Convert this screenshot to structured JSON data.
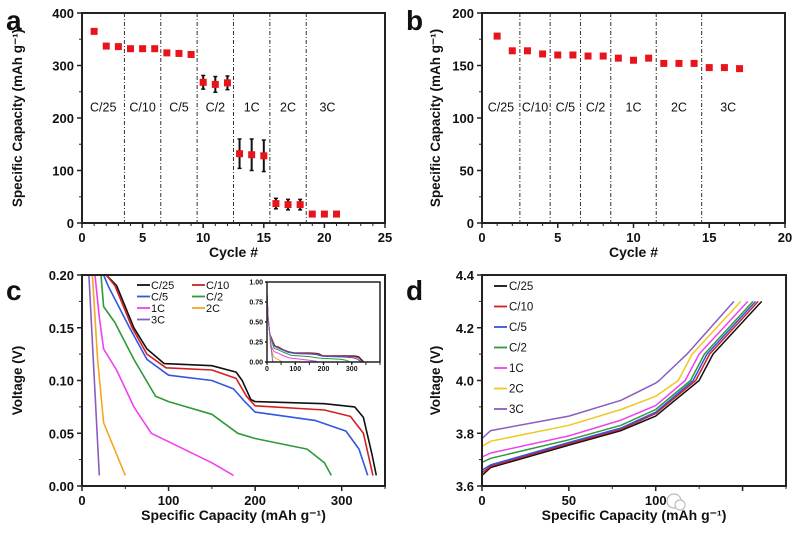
{
  "chart_data": [
    {
      "panel": "a",
      "type": "scatter",
      "xlabel": "Cycle #",
      "ylabel": "Specific Capacity (mAh g⁻¹)",
      "xlim": [
        0,
        25
      ],
      "ylim": [
        0,
        400
      ],
      "xticks": [
        0,
        5,
        10,
        15,
        20,
        25
      ],
      "yticks": [
        0,
        100,
        200,
        300,
        400
      ],
      "marker_color": "#e8141b",
      "x": [
        1,
        2,
        3,
        4,
        5,
        6,
        7,
        8,
        9,
        10,
        11,
        12,
        13,
        14,
        15,
        16,
        17,
        18,
        19,
        20,
        21
      ],
      "y": [
        365,
        337,
        336,
        332,
        332,
        332,
        324,
        323,
        321,
        268,
        264,
        267,
        132,
        130,
        128,
        37,
        35,
        35,
        17,
        17,
        17
      ],
      "yerr": [
        0,
        0,
        0,
        0,
        0,
        0,
        0,
        0,
        0,
        13,
        15,
        13,
        28,
        30,
        30,
        10,
        10,
        10,
        0,
        0,
        0
      ],
      "rate_boundaries": [
        3.5,
        6.5,
        9.5,
        12.5,
        15.5,
        18.5
      ],
      "rate_labels": [
        "C/25",
        "C/10",
        "C/5",
        "C/2",
        "1C",
        "2C",
        "3C"
      ],
      "rate_label_y": 212
    },
    {
      "panel": "b",
      "type": "scatter",
      "xlabel": "Cycle #",
      "ylabel": "Specific Capacity (mAh g⁻¹)",
      "xlim": [
        0,
        20
      ],
      "ylim": [
        0,
        200
      ],
      "xticks": [
        0,
        5,
        10,
        15,
        20
      ],
      "yticks": [
        0,
        50,
        100,
        150,
        200
      ],
      "marker_color": "#e8141b",
      "x": [
        1,
        2,
        3,
        4,
        5,
        6,
        7,
        8,
        9,
        10,
        11,
        12,
        13,
        14,
        15,
        16,
        17
      ],
      "y": [
        178,
        164,
        164,
        161,
        160,
        160,
        159,
        159,
        157,
        155,
        157,
        152,
        152,
        152,
        148,
        148,
        147
      ],
      "rate_boundaries": [
        2.5,
        4.5,
        6.5,
        8.5,
        11.5,
        14.5
      ],
      "rate_labels": [
        "C/25",
        "C/10",
        "C/5",
        "C/2",
        "1C",
        "2C",
        "3C"
      ],
      "rate_label_y": 106
    },
    {
      "panel": "c",
      "type": "line",
      "xlabel": "Specific Capacity  (mAh g⁻¹)",
      "ylabel": "Voltage (V)",
      "xlim": [
        0,
        350
      ],
      "ylim": [
        0,
        0.2
      ],
      "xticks": [
        0,
        100,
        200,
        300
      ],
      "yticks": [
        0.0,
        0.05,
        0.1,
        0.15,
        0.2
      ],
      "ytick_labels": [
        "0.00",
        "0.05",
        "0.10",
        "0.15",
        "0.20"
      ],
      "legend": "top",
      "series": [
        {
          "name": "C/25",
          "color": "#111111",
          "points": [
            [
              28,
              0.2
            ],
            [
              40,
              0.19
            ],
            [
              60,
              0.15
            ],
            [
              75,
              0.13
            ],
            [
              95,
              0.116
            ],
            [
              150,
              0.114
            ],
            [
              178,
              0.108
            ],
            [
              185,
              0.1
            ],
            [
              195,
              0.082
            ],
            [
              200,
              0.08
            ],
            [
              280,
              0.078
            ],
            [
              315,
              0.075
            ],
            [
              325,
              0.065
            ],
            [
              335,
              0.03
            ],
            [
              340,
              0.01
            ]
          ]
        },
        {
          "name": "C/10",
          "color": "#d42020",
          "points": [
            [
              28,
              0.2
            ],
            [
              38,
              0.19
            ],
            [
              58,
              0.15
            ],
            [
              75,
              0.125
            ],
            [
              97,
              0.112
            ],
            [
              150,
              0.11
            ],
            [
              178,
              0.102
            ],
            [
              190,
              0.085
            ],
            [
              200,
              0.076
            ],
            [
              280,
              0.072
            ],
            [
              310,
              0.066
            ],
            [
              325,
              0.05
            ],
            [
              336,
              0.01
            ]
          ]
        },
        {
          "name": "C/5",
          "color": "#3355e0",
          "points": [
            [
              25,
              0.2
            ],
            [
              30,
              0.19
            ],
            [
              55,
              0.15
            ],
            [
              75,
              0.12
            ],
            [
              100,
              0.105
            ],
            [
              150,
              0.1
            ],
            [
              175,
              0.092
            ],
            [
              188,
              0.08
            ],
            [
              200,
              0.07
            ],
            [
              270,
              0.062
            ],
            [
              305,
              0.052
            ],
            [
              320,
              0.035
            ],
            [
              330,
              0.01
            ]
          ]
        },
        {
          "name": "C/2",
          "color": "#2e9a3a",
          "points": [
            [
              22,
              0.2
            ],
            [
              25,
              0.17
            ],
            [
              38,
              0.155
            ],
            [
              60,
              0.12
            ],
            [
              85,
              0.085
            ],
            [
              100,
              0.08
            ],
            [
              150,
              0.068
            ],
            [
              180,
              0.05
            ],
            [
              200,
              0.045
            ],
            [
              260,
              0.035
            ],
            [
              280,
              0.022
            ],
            [
              288,
              0.01
            ]
          ]
        },
        {
          "name": "1C",
          "color": "#f040f0",
          "points": [
            [
              15,
              0.2
            ],
            [
              20,
              0.16
            ],
            [
              25,
              0.13
            ],
            [
              40,
              0.11
            ],
            [
              60,
              0.075
            ],
            [
              80,
              0.05
            ],
            [
              100,
              0.042
            ],
            [
              150,
              0.022
            ],
            [
              175,
              0.01
            ]
          ]
        },
        {
          "name": "2C",
          "color": "#f5a623",
          "points": [
            [
              12,
              0.2
            ],
            [
              18,
              0.12
            ],
            [
              25,
              0.06
            ],
            [
              50,
              0.01
            ]
          ]
        },
        {
          "name": "3C",
          "color": "#8a5cc0",
          "points": [
            [
              8,
              0.2
            ],
            [
              20,
              0.01
            ]
          ]
        }
      ],
      "inset": {
        "xlim": [
          0,
          400
        ],
        "ylim": [
          0,
          1
        ],
        "xticks": [
          0,
          100,
          200,
          300
        ],
        "yticks": [
          0,
          0.25,
          0.5,
          0.75,
          1.0
        ],
        "ytick_labels": [
          "0.00",
          "0.25",
          "0.50",
          "0.75",
          "1.00"
        ]
      }
    },
    {
      "panel": "d",
      "type": "line",
      "xlabel": "Specific Capacity (mAh g⁻¹)",
      "ylabel": "Voltage (V)",
      "xlim": [
        0,
        175
      ],
      "ylim": [
        3.6,
        4.4
      ],
      "xticks": [
        0,
        50,
        100,
        150
      ],
      "xtick_labels": [
        "0",
        "50",
        "100",
        ""
      ],
      "yticks": [
        3.6,
        3.8,
        4.0,
        4.2,
        4.4
      ],
      "ytick_labels": [
        "3.6",
        "3.8",
        "4.0",
        "4.2",
        "4.4"
      ],
      "legend": "top-left",
      "series": [
        {
          "name": "C/25",
          "color": "#111111",
          "points": [
            [
              0,
              3.64
            ],
            [
              5,
              3.67
            ],
            [
              50,
              3.755
            ],
            [
              80,
              3.81
            ],
            [
              100,
              3.865
            ],
            [
              125,
              4.0
            ],
            [
              133,
              4.1
            ],
            [
              161,
              4.3
            ]
          ]
        },
        {
          "name": "C/10",
          "color": "#d42020",
          "points": [
            [
              0,
              3.65
            ],
            [
              5,
              3.675
            ],
            [
              50,
              3.76
            ],
            [
              80,
              3.815
            ],
            [
              100,
              3.875
            ],
            [
              123,
              4.0
            ],
            [
              131,
              4.1
            ],
            [
              159,
              4.3
            ]
          ]
        },
        {
          "name": "C/5",
          "color": "#3355e0",
          "points": [
            [
              0,
              3.66
            ],
            [
              5,
              3.68
            ],
            [
              50,
              3.765
            ],
            [
              80,
              3.82
            ],
            [
              100,
              3.88
            ],
            [
              121.5,
              4.0
            ],
            [
              129.5,
              4.1
            ],
            [
              157.5,
              4.3
            ]
          ]
        },
        {
          "name": "C/2",
          "color": "#2e9a3a",
          "points": [
            [
              0,
              3.69
            ],
            [
              5,
              3.705
            ],
            [
              50,
              3.775
            ],
            [
              80,
              3.83
            ],
            [
              100,
              3.89
            ],
            [
              120,
              4.0
            ],
            [
              128,
              4.1
            ],
            [
              156,
              4.3
            ]
          ]
        },
        {
          "name": "1C",
          "color": "#f040f0",
          "points": [
            [
              0,
              3.71
            ],
            [
              5,
              3.725
            ],
            [
              50,
              3.79
            ],
            [
              80,
              3.85
            ],
            [
              100,
              3.905
            ],
            [
              117,
              4.0
            ],
            [
              125,
              4.1
            ],
            [
              153,
              4.3
            ]
          ]
        },
        {
          "name": "2C",
          "color": "#f0c81e",
          "points": [
            [
              0,
              3.75
            ],
            [
              5,
              3.77
            ],
            [
              50,
              3.83
            ],
            [
              80,
              3.89
            ],
            [
              100,
              3.94
            ],
            [
              113,
              4.0
            ],
            [
              121,
              4.1
            ],
            [
              149,
              4.3
            ]
          ]
        },
        {
          "name": "3C",
          "color": "#8a5cc0",
          "points": [
            [
              0,
              3.78
            ],
            [
              5,
              3.81
            ],
            [
              50,
              3.865
            ],
            [
              80,
              3.925
            ],
            [
              100,
              3.99
            ],
            [
              102,
              4.0
            ],
            [
              118,
              4.1
            ],
            [
              145,
              4.3
            ]
          ]
        }
      ]
    }
  ],
  "panel_letters": [
    "a",
    "b",
    "c",
    "d"
  ],
  "watermark": "能源学人"
}
